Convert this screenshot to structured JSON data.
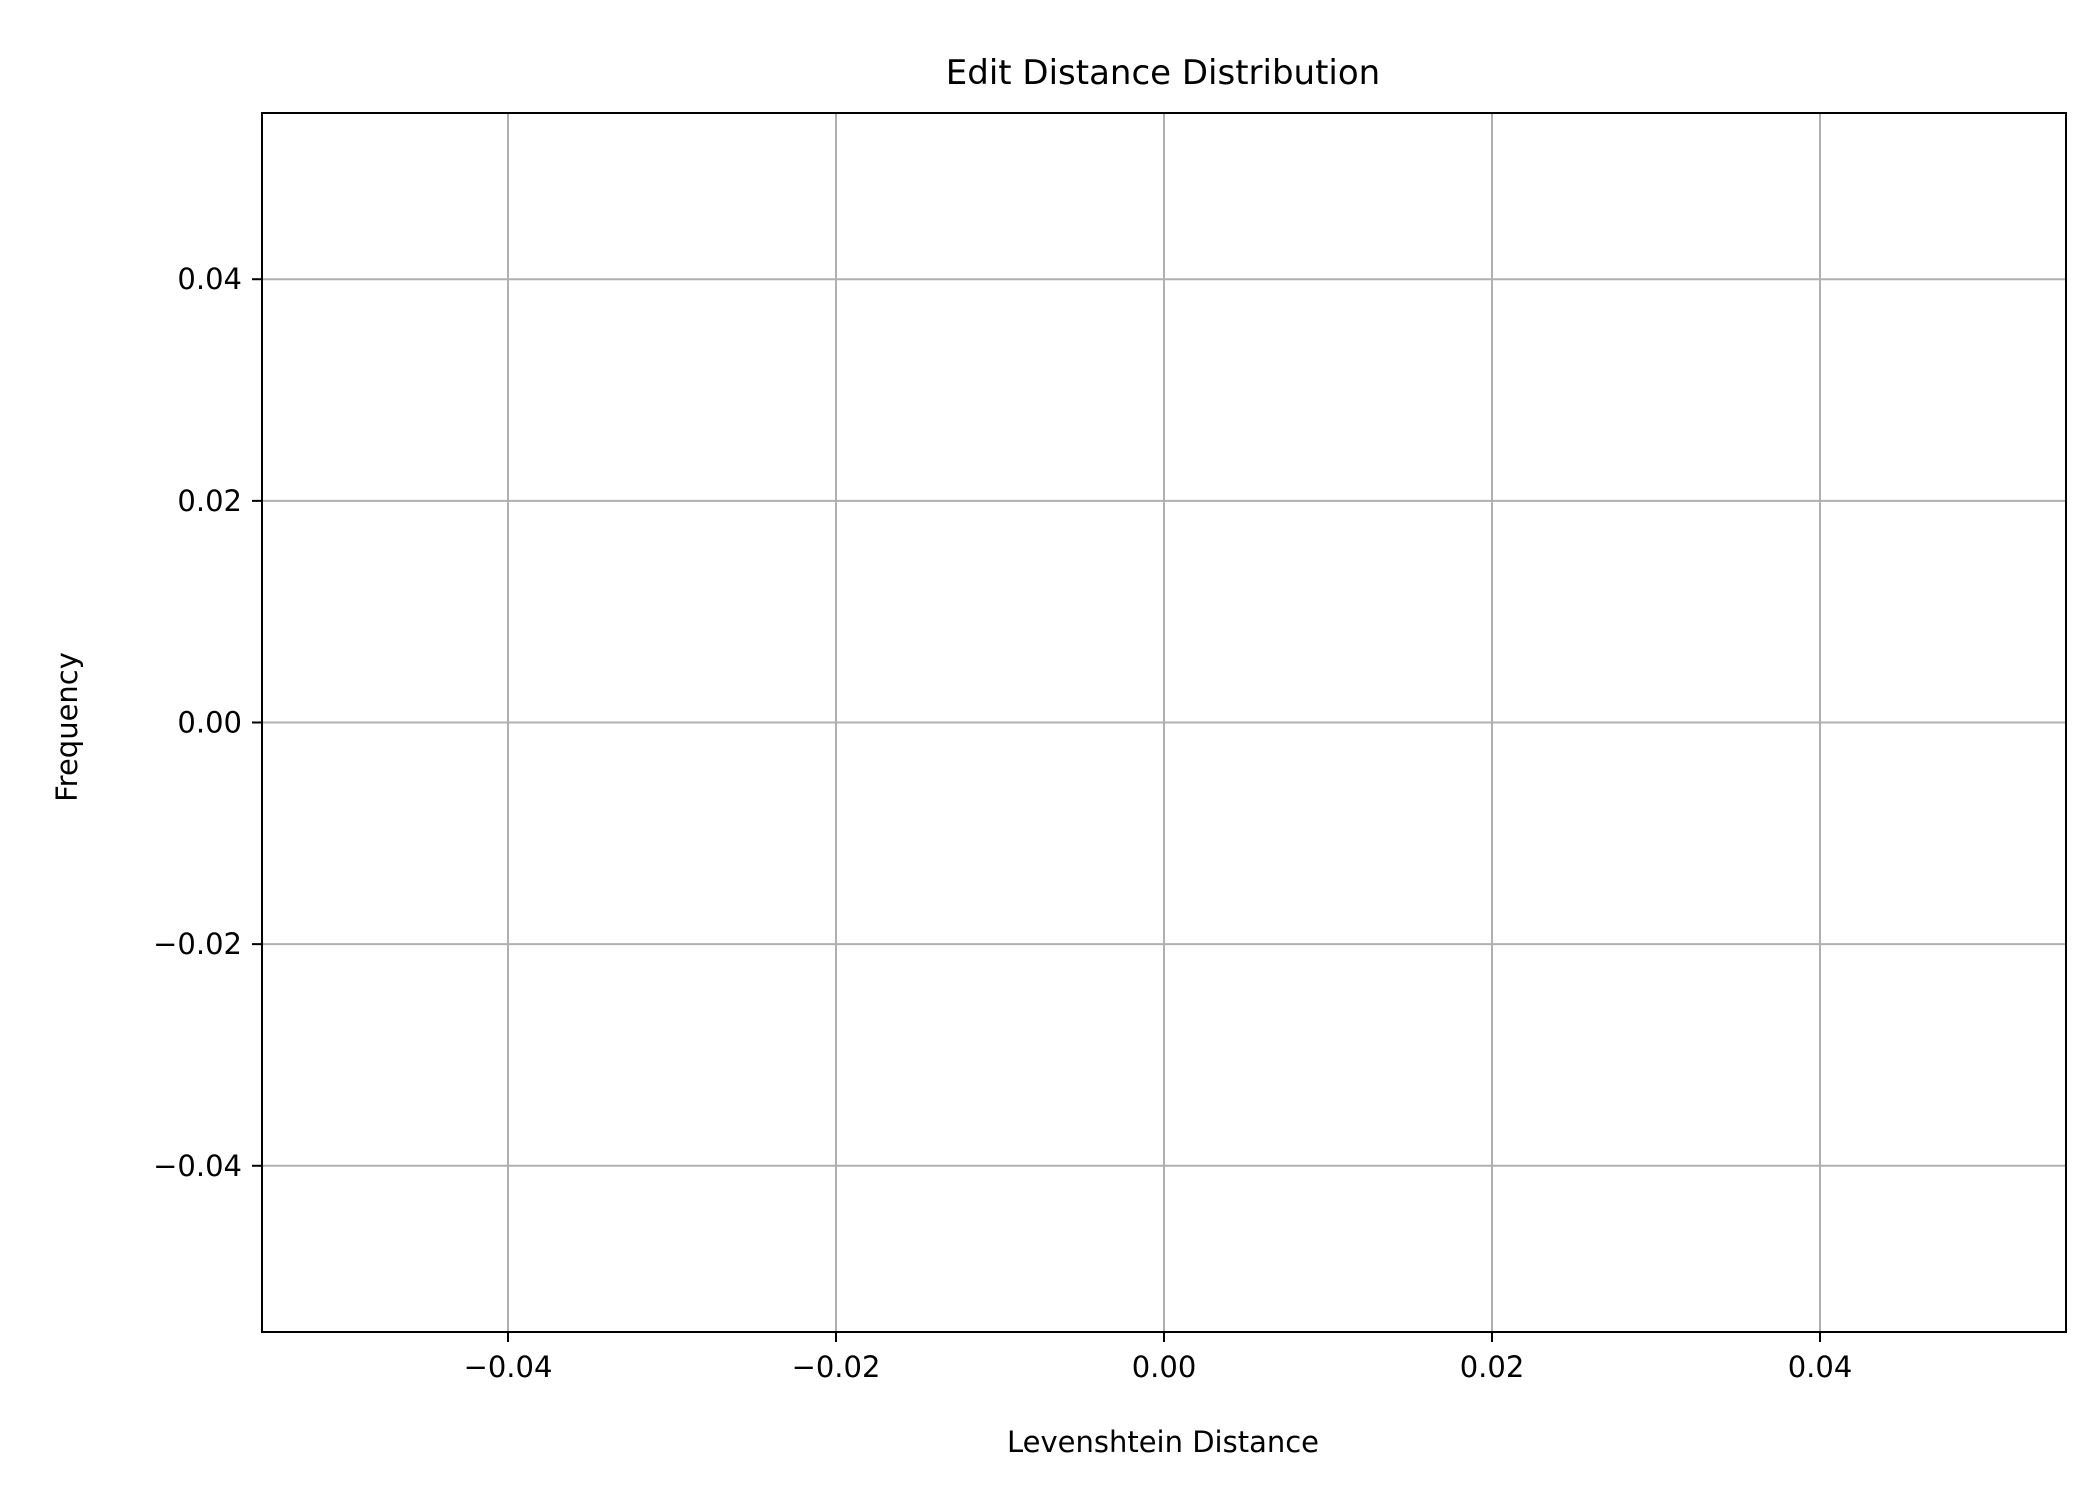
{
  "chart_data": {
    "type": "bar",
    "title": "Edit Distance Distribution",
    "xlabel": "Levenshtein Distance",
    "ylabel": "Frequency",
    "xlim": [
      -0.055,
      0.055
    ],
    "ylim": [
      -0.055,
      0.055
    ],
    "xticks": [
      -0.04,
      -0.02,
      0.0,
      0.02,
      0.04
    ],
    "yticks": [
      -0.04,
      -0.02,
      0.0,
      0.02,
      0.04
    ],
    "xtick_labels": [
      "−0.04",
      "−0.02",
      "0.00",
      "0.02",
      "0.04"
    ],
    "ytick_labels": [
      "−0.04",
      "−0.02",
      "0.00",
      "0.02",
      "0.04"
    ],
    "grid": true,
    "values": [],
    "colors": {
      "grid": "#b0b0b0",
      "axes": "#000000",
      "background": "#ffffff"
    }
  }
}
